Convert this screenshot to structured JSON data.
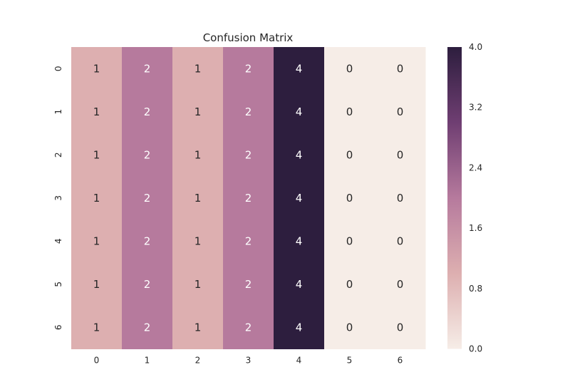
{
  "chart_data": {
    "type": "heatmap",
    "title": "Confusion Matrix",
    "x_categories": [
      "0",
      "1",
      "2",
      "3",
      "4",
      "5",
      "6"
    ],
    "y_categories": [
      "0",
      "1",
      "2",
      "3",
      "4",
      "5",
      "6"
    ],
    "values": [
      [
        1,
        2,
        1,
        2,
        4,
        0,
        0
      ],
      [
        1,
        2,
        1,
        2,
        4,
        0,
        0
      ],
      [
        1,
        2,
        1,
        2,
        4,
        0,
        0
      ],
      [
        1,
        2,
        1,
        2,
        4,
        0,
        0
      ],
      [
        1,
        2,
        1,
        2,
        4,
        0,
        0
      ],
      [
        1,
        2,
        1,
        2,
        4,
        0,
        0
      ],
      [
        1,
        2,
        1,
        2,
        4,
        0,
        0
      ]
    ],
    "vmin": 0.0,
    "vmax": 4.0,
    "colorbar": {
      "ticks": [
        0.0,
        0.8,
        1.6,
        2.4,
        3.2,
        4.0
      ],
      "tick_labels": [
        "0.0",
        "0.8",
        "1.6",
        "2.4",
        "3.2",
        "4.0"
      ]
    },
    "colormap": {
      "stops": [
        {
          "value": 0,
          "color": "#f6ede7"
        },
        {
          "value": 1,
          "color": "#ddafb0"
        },
        {
          "value": 2,
          "color": "#b67a9d"
        },
        {
          "value": 3,
          "color": "#6f3e72"
        },
        {
          "value": 4,
          "color": "#2d1e3e"
        }
      ]
    },
    "annotation_colors": {
      "dark_text": "#262626",
      "light_text": "#ffffff"
    },
    "grid": false
  }
}
